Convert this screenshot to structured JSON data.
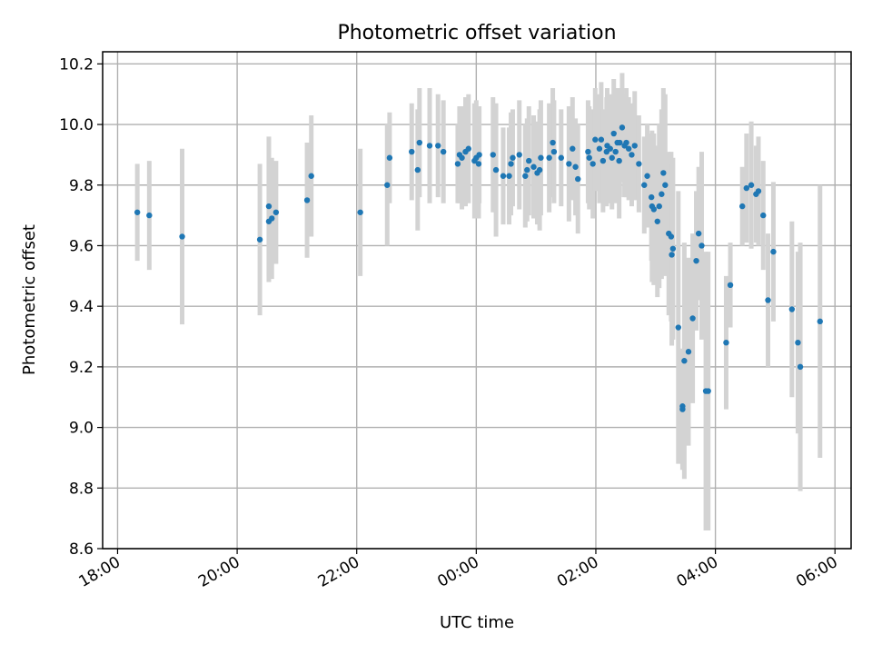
{
  "chart_data": {
    "type": "scatter",
    "title": "Photometric offset variation",
    "xlabel": "UTC time",
    "ylabel": "Photometric offset",
    "x_ticks": [
      "18:00",
      "20:00",
      "22:00",
      "00:00",
      "02:00",
      "04:00",
      "06:00"
    ],
    "y_ticks": [
      "8.6",
      "8.8",
      "9.0",
      "9.2",
      "9.4",
      "9.6",
      "9.8",
      "10.0",
      "10.2"
    ],
    "x_unit": "hours since 18:00 UTC",
    "xlim": [
      -0.25,
      12.27
    ],
    "ylim": [
      8.6,
      10.24
    ],
    "grid": true,
    "point_color": "#1f77b4",
    "errorbar_color": "#d3d3d3",
    "series": [
      {
        "points": [
          [
            0.33,
            9.71,
            0.16
          ],
          [
            0.53,
            9.7,
            0.18
          ],
          [
            1.08,
            9.63,
            0.29
          ],
          [
            2.38,
            9.62,
            0.25
          ],
          [
            2.53,
            9.73,
            0.23
          ],
          [
            2.53,
            9.68,
            0.2
          ],
          [
            2.58,
            9.69,
            0.2
          ],
          [
            2.65,
            9.71,
            0.17
          ],
          [
            3.17,
            9.75,
            0.19
          ],
          [
            3.24,
            9.83,
            0.2
          ],
          [
            4.06,
            9.71,
            0.21
          ],
          [
            4.51,
            9.8,
            0.2
          ],
          [
            4.55,
            9.89,
            0.15
          ],
          [
            4.92,
            9.91,
            0.16
          ],
          [
            5.02,
            9.85,
            0.2
          ],
          [
            5.05,
            9.94,
            0.18
          ],
          [
            5.22,
            9.93,
            0.19
          ],
          [
            5.36,
            9.93,
            0.17
          ],
          [
            5.45,
            9.91,
            0.17
          ],
          [
            5.69,
            9.87,
            0.13
          ],
          [
            5.72,
            9.9,
            0.16
          ],
          [
            5.76,
            9.89,
            0.17
          ],
          [
            5.82,
            9.91,
            0.18
          ],
          [
            5.87,
            9.92,
            0.18
          ],
          [
            5.97,
            9.88,
            0.19
          ],
          [
            6.0,
            9.89,
            0.19
          ],
          [
            6.04,
            9.87,
            0.18
          ],
          [
            6.05,
            9.9,
            0.16
          ],
          [
            6.28,
            9.9,
            0.19
          ],
          [
            6.33,
            9.85,
            0.22
          ],
          [
            6.45,
            9.83,
            0.16
          ],
          [
            6.55,
            9.83,
            0.16
          ],
          [
            6.58,
            9.87,
            0.17
          ],
          [
            6.61,
            9.89,
            0.16
          ],
          [
            6.72,
            9.9,
            0.18
          ],
          [
            6.82,
            9.83,
            0.17
          ],
          [
            6.85,
            9.85,
            0.17
          ],
          [
            6.88,
            9.88,
            0.18
          ],
          [
            6.96,
            9.86,
            0.17
          ],
          [
            7.02,
            9.84,
            0.17
          ],
          [
            7.06,
            9.85,
            0.2
          ],
          [
            7.08,
            9.89,
            0.19
          ],
          [
            7.22,
            9.89,
            0.18
          ],
          [
            7.28,
            9.94,
            0.18
          ],
          [
            7.3,
            9.91,
            0.17
          ],
          [
            7.42,
            9.89,
            0.16
          ],
          [
            7.55,
            9.87,
            0.19
          ],
          [
            7.61,
            9.92,
            0.17
          ],
          [
            7.66,
            9.86,
            0.16
          ],
          [
            7.7,
            9.82,
            0.18
          ],
          [
            7.87,
            9.91,
            0.17
          ],
          [
            7.89,
            9.89,
            0.17
          ],
          [
            7.95,
            9.87,
            0.18
          ],
          [
            7.99,
            9.95,
            0.17
          ],
          [
            8.06,
            9.92,
            0.18
          ],
          [
            8.09,
            9.95,
            0.19
          ],
          [
            8.12,
            9.88,
            0.17
          ],
          [
            8.18,
            9.91,
            0.18
          ],
          [
            8.19,
            9.93,
            0.19
          ],
          [
            8.24,
            9.92,
            0.18
          ],
          [
            8.27,
            9.89,
            0.17
          ],
          [
            8.3,
            9.97,
            0.18
          ],
          [
            8.33,
            9.91,
            0.17
          ],
          [
            8.36,
            9.94,
            0.18
          ],
          [
            8.39,
            9.88,
            0.19
          ],
          [
            8.4,
            9.94,
            0.18
          ],
          [
            8.44,
            9.99,
            0.18
          ],
          [
            8.48,
            9.93,
            0.17
          ],
          [
            8.51,
            9.94,
            0.18
          ],
          [
            8.55,
            9.92,
            0.17
          ],
          [
            8.6,
            9.9,
            0.17
          ],
          [
            8.65,
            9.93,
            0.18
          ],
          [
            8.72,
            9.87,
            0.16
          ],
          [
            8.81,
            9.8,
            0.16
          ],
          [
            8.86,
            9.83,
            0.17
          ],
          [
            8.93,
            9.76,
            0.21
          ],
          [
            8.94,
            9.73,
            0.25
          ],
          [
            8.97,
            9.72,
            0.25
          ],
          [
            9.03,
            9.68,
            0.25
          ],
          [
            9.06,
            9.73,
            0.27
          ],
          [
            9.1,
            9.77,
            0.28
          ],
          [
            9.13,
            9.84,
            0.28
          ],
          [
            9.16,
            9.8,
            0.3
          ],
          [
            9.22,
            9.64,
            0.27
          ],
          [
            9.26,
            9.63,
            0.28
          ],
          [
            9.27,
            9.57,
            0.3
          ],
          [
            9.29,
            9.59,
            0.3
          ],
          [
            9.38,
            9.33,
            0.45
          ],
          [
            9.45,
            9.07,
            0.19
          ],
          [
            9.45,
            9.06,
            0.2
          ],
          [
            9.48,
            9.22,
            0.39
          ],
          [
            9.55,
            9.25,
            0.31
          ],
          [
            9.62,
            9.36,
            0.28
          ],
          [
            9.68,
            9.55,
            0.23
          ],
          [
            9.72,
            9.64,
            0.22
          ],
          [
            9.77,
            9.6,
            0.31
          ],
          [
            9.84,
            9.12,
            0.46
          ],
          [
            9.88,
            9.12,
            0.46
          ],
          [
            10.18,
            9.28,
            0.22
          ],
          [
            10.25,
            9.47,
            0.14
          ],
          [
            10.45,
            9.73,
            0.13
          ],
          [
            10.52,
            9.79,
            0.18
          ],
          [
            10.6,
            9.8,
            0.21
          ],
          [
            10.68,
            9.77,
            0.16
          ],
          [
            10.72,
            9.78,
            0.18
          ],
          [
            10.8,
            9.7,
            0.18
          ],
          [
            10.88,
            9.42,
            0.22
          ],
          [
            10.97,
            9.58,
            0.23
          ],
          [
            11.28,
            9.39,
            0.29
          ],
          [
            11.38,
            9.28,
            0.3
          ],
          [
            11.42,
            9.2,
            0.41
          ],
          [
            11.75,
            9.35,
            0.45
          ]
        ]
      }
    ]
  }
}
